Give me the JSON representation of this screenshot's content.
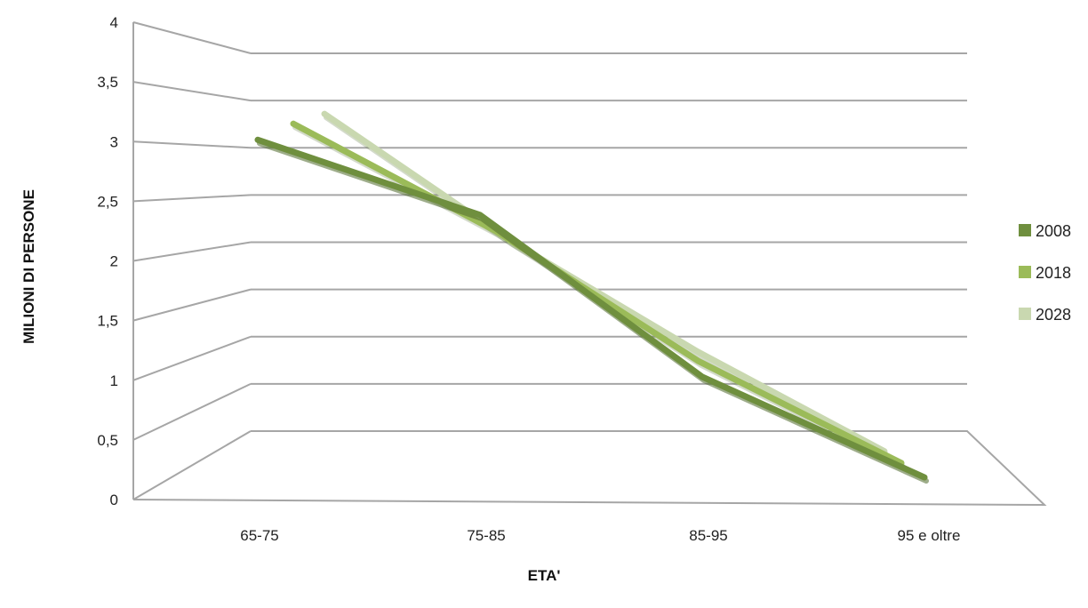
{
  "chart_data": {
    "type": "line",
    "style": "3d",
    "categories": [
      "65-75",
      "75-85",
      "85-95",
      "95 e oltre"
    ],
    "series": [
      {
        "name": "2008",
        "values": [
          3.1,
          2.45,
          1.05,
          0.18
        ],
        "color": "#6f8f3e"
      },
      {
        "name": "2018",
        "values": [
          3.25,
          2.3,
          1.15,
          0.25
        ],
        "color": "#9bbb59"
      },
      {
        "name": "2028",
        "values": [
          3.35,
          2.2,
          1.2,
          0.3
        ],
        "color": "#c9d8b0"
      }
    ],
    "xlabel": "ETA'",
    "ylabel": "MILIONI DI PERSONE",
    "ylim": [
      0,
      4
    ],
    "yticks": [
      "0",
      "0,5",
      "1",
      "1,5",
      "2",
      "2,5",
      "3",
      "3,5",
      "4"
    ],
    "grid": true,
    "legend_position": "right"
  }
}
